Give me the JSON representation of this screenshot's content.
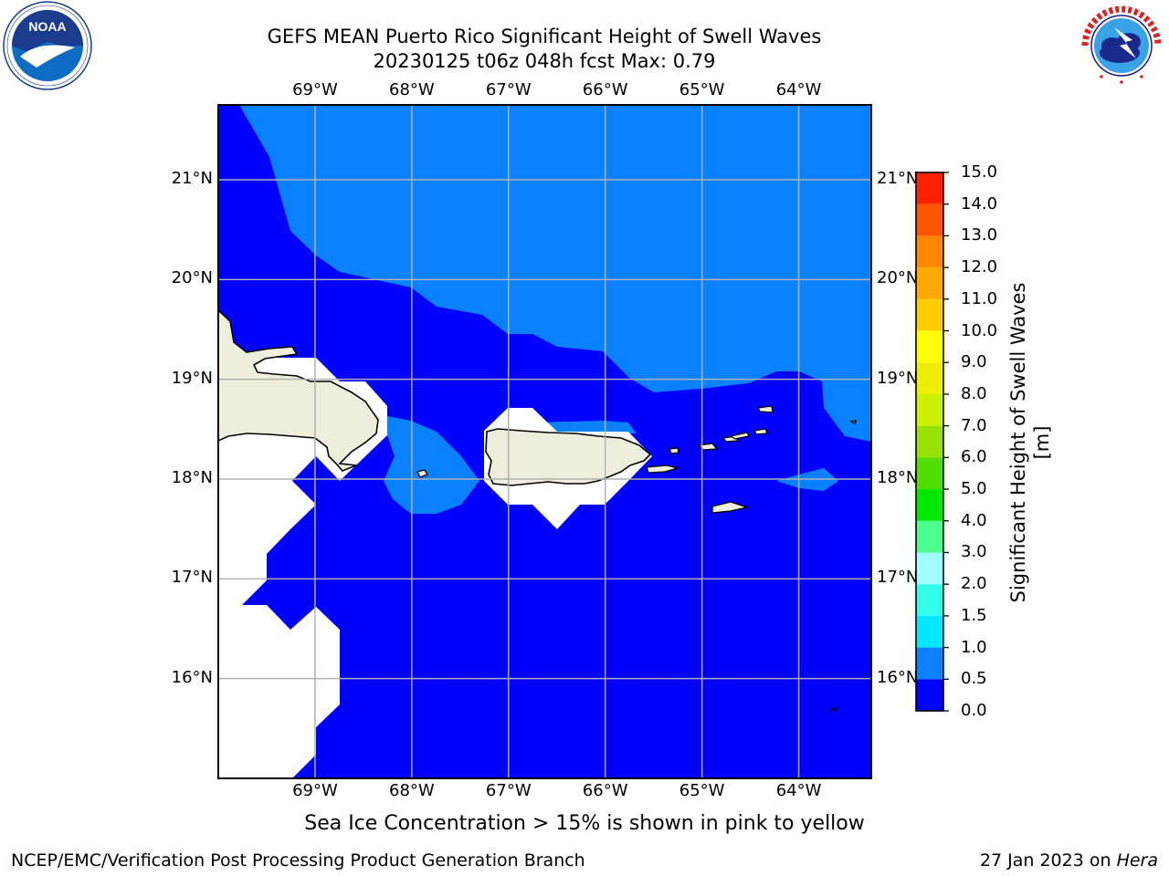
{
  "header": {
    "title_line1": "GEFS MEAN Puerto Rico Significant Height of Swell Waves",
    "title_line2": "20230125 t06z 048h fcst   Max: 0.79"
  },
  "logos": {
    "left": {
      "name": "noaa-logo",
      "text": "NOAA",
      "ring_text": "NATIONAL OCEANIC AND ATMOSPHERIC ADMINISTRATION · U.S. DEPARTMENT OF COMMERCE"
    },
    "right": {
      "name": "nws-logo",
      "ring_text": "NATIONAL WEATHER SERVICE"
    }
  },
  "map": {
    "lon_labels": [
      "69°W",
      "68°W",
      "67°W",
      "66°W",
      "65°W",
      "64°W"
    ],
    "lat_labels": [
      "21°N",
      "20°N",
      "19°N",
      "18°N",
      "17°N",
      "16°N"
    ],
    "lon_range": [
      -70.0,
      -63.25
    ],
    "lat_range": [
      15.0,
      21.75
    ],
    "grid": true,
    "colors": {
      "swell_0_0p5": "#0000ff",
      "swell_0p5_1": "#0a82ff",
      "land": "#eeeedd",
      "no_data": "#ffffff",
      "grid": "#b0b0b0"
    }
  },
  "colorbar": {
    "title": "Significant Height of Swell Waves [m]",
    "ticks": [
      "15.0",
      "14.0",
      "13.0",
      "12.0",
      "11.0",
      "10.0",
      "9.0",
      "8.0",
      "7.0",
      "6.0",
      "5.0",
      "4.0",
      "3.0",
      "2.0",
      "1.5",
      "1.0",
      "0.5",
      "0.0"
    ],
    "levels": [
      0.0,
      0.5,
      1.0,
      1.5,
      2.0,
      3.0,
      4.0,
      5.0,
      6.0,
      7.0,
      8.0,
      9.0,
      10.0,
      11.0,
      12.0,
      13.0,
      14.0,
      15.0
    ],
    "colors": [
      "#0000ff",
      "#0a82ff",
      "#00e8ff",
      "#33ffee",
      "#a0ffff",
      "#4cff8c",
      "#00e800",
      "#55dd00",
      "#99e000",
      "#ccf000",
      "#eeee00",
      "#ffff00",
      "#ffcc00",
      "#ffaa00",
      "#ff8800",
      "#ff5500",
      "#ff2200"
    ]
  },
  "footer": {
    "note": "Sea Ice Concentration > 15% is shown in pink to yellow",
    "left": "NCEP/EMC/Verification Post Processing Product Generation Branch",
    "right_prefix": "27 Jan 2023 on ",
    "right_host": "Hera"
  }
}
